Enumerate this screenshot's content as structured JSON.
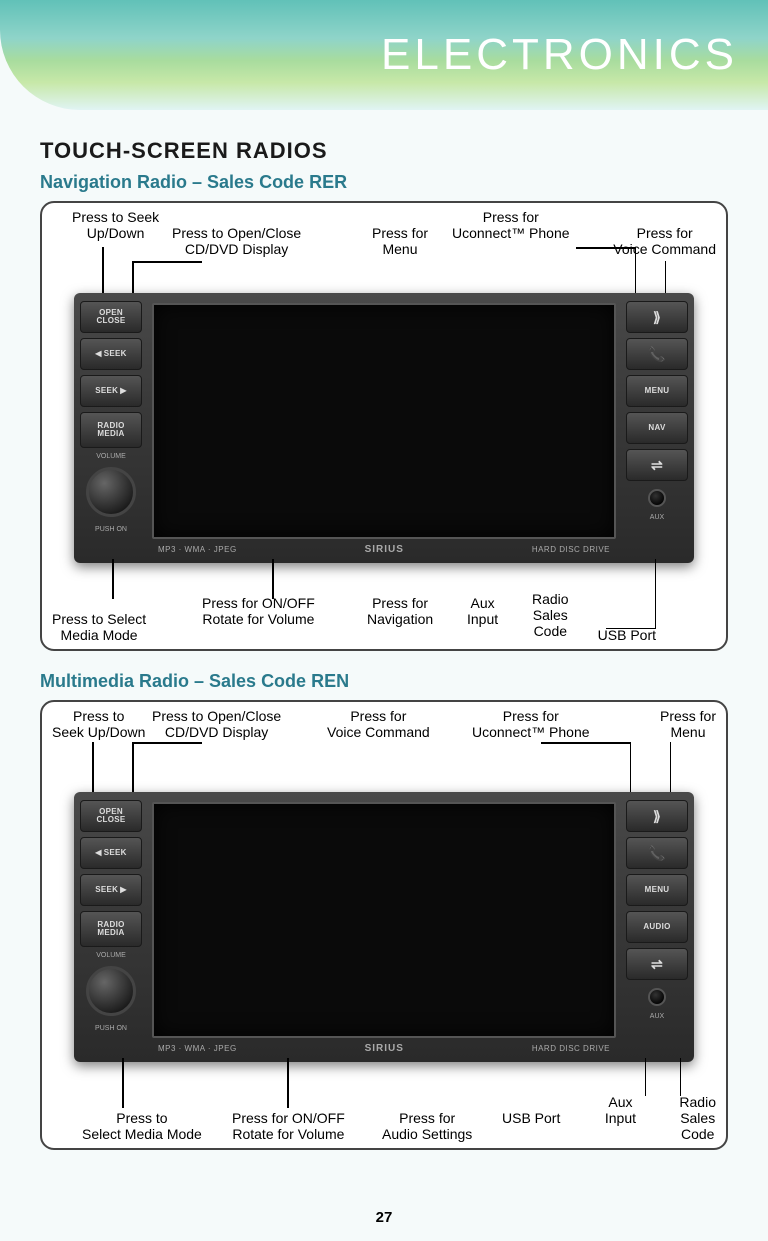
{
  "header": {
    "title": "ELECTRONICS"
  },
  "section_title": "TOUCH-SCREEN RADIOS",
  "page_number": "27",
  "radio1": {
    "subtitle": "Navigation Radio – Sales Code RER",
    "left_buttons": {
      "open_close": "OPEN\nCLOSE",
      "seek_up": "SEEK",
      "seek_down": "SEEK",
      "radio_media": "RADIO\nMEDIA",
      "volume_label": "VOLUME",
      "push_on": "PUSH ON"
    },
    "right_buttons": {
      "voice": "⟫",
      "phone": "📞",
      "menu": "MENU",
      "nav": "NAV",
      "usb": "⇌",
      "aux_label": "AUX"
    },
    "bezel": {
      "left": "MP3 · WMA · JPEG",
      "center": "SIRIUS",
      "right": "HARD DISC DRIVE"
    },
    "callouts_top": {
      "seek": "Press to Seek\nUp/Down",
      "open_close": "Press to Open/Close\nCD/DVD Display",
      "menu": "Press for\nMenu",
      "uconnect": "Press for\nUconnect™ Phone",
      "voice": "Press for\nVoice Command"
    },
    "callouts_bottom": {
      "media_mode": "Press to Select\nMedia Mode",
      "volume": "Press for ON/OFF\nRotate for Volume",
      "navigation": "Press for\nNavigation",
      "aux": "Aux\nInput",
      "sales_code": "Radio\nSales\nCode",
      "usb": "USB Port"
    }
  },
  "radio2": {
    "subtitle": "Multimedia Radio – Sales Code REN",
    "left_buttons": {
      "open_close": "OPEN\nCLOSE",
      "seek_up": "SEEK",
      "seek_down": "SEEK",
      "radio_media": "RADIO\nMEDIA",
      "volume_label": "VOLUME",
      "push_on": "PUSH ON"
    },
    "right_buttons": {
      "voice": "⟫",
      "phone": "📞",
      "menu": "MENU",
      "audio": "AUDIO",
      "usb": "⇌",
      "aux_label": "AUX"
    },
    "bezel": {
      "left": "MP3 · WMA · JPEG",
      "center": "SIRIUS",
      "right": "HARD DISC DRIVE"
    },
    "callouts_top": {
      "seek": "Press to\nSeek Up/Down",
      "open_close": "Press to Open/Close\nCD/DVD Display",
      "voice": "Press for\nVoice Command",
      "uconnect": "Press for\nUconnect™ Phone",
      "menu": "Press for\nMenu"
    },
    "callouts_bottom": {
      "media_mode": "Press to\nSelect Media Mode",
      "volume": "Press for ON/OFF\nRotate for Volume",
      "audio": "Press for\nAudio Settings",
      "usb": "USB Port",
      "aux": "Aux\nInput",
      "sales_code": "Radio\nSales\nCode"
    }
  }
}
